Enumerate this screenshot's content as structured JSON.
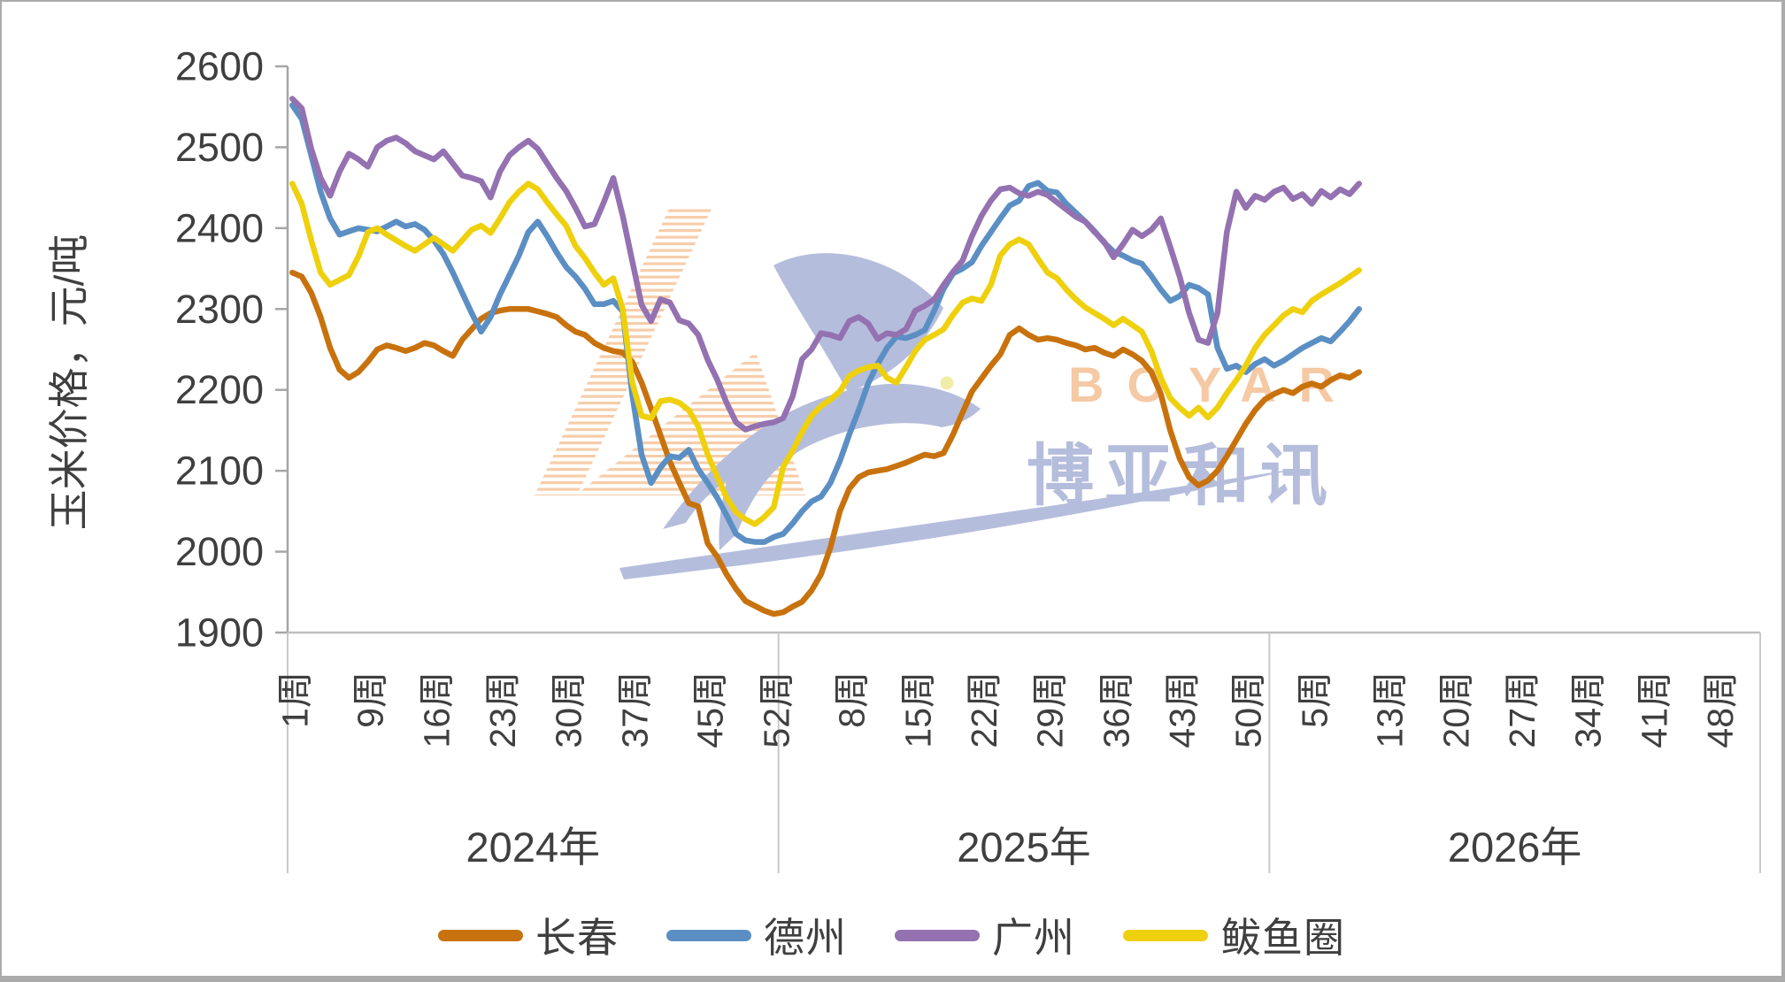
{
  "window": {
    "background": "#FFFFFF",
    "frame_color": "#ABABAB"
  },
  "watermark": {
    "brand_latin": "BOYAR",
    "brand_cn": "博亚和讯",
    "bird_color": "#B5BDDC",
    "bird_eye_color": "#F1EDA6",
    "latin_color": "#F4C9A4",
    "stripe_color": "#F6CDA9"
  },
  "chart_data": {
    "type": "line",
    "title": "",
    "ylabel": "玉米价格，元/吨",
    "xlabel": "",
    "grid": false,
    "legend_position": "bottom",
    "y_axis": {
      "min": 1900,
      "max": 2600,
      "step": 100,
      "ticks": [
        "1900",
        "2000",
        "2100",
        "2200",
        "2300",
        "2400",
        "2500",
        "2600"
      ]
    },
    "x_axis": {
      "unit": "周",
      "points_per_year": [
        52,
        52,
        10
      ],
      "years": [
        {
          "label": "2024年",
          "week_labels": [
            {
              "week": 1,
              "label": "1周"
            },
            {
              "week": 9,
              "label": "9周"
            },
            {
              "week": 16,
              "label": "16周"
            },
            {
              "week": 23,
              "label": "23周"
            },
            {
              "week": 30,
              "label": "30周"
            },
            {
              "week": 37,
              "label": "37周"
            },
            {
              "week": 45,
              "label": "45周"
            },
            {
              "week": 52,
              "label": "52周"
            }
          ]
        },
        {
          "label": "2025年",
          "week_labels": [
            {
              "week": 8,
              "label": "8周"
            },
            {
              "week": 15,
              "label": "15周"
            },
            {
              "week": 22,
              "label": "22周"
            },
            {
              "week": 29,
              "label": "29周"
            },
            {
              "week": 36,
              "label": "36周"
            },
            {
              "week": 43,
              "label": "43周"
            },
            {
              "week": 50,
              "label": "50周"
            }
          ]
        },
        {
          "label": "2026年",
          "week_labels": [
            {
              "week": 5,
              "label": "5周"
            },
            {
              "week": 13,
              "label": "13周"
            },
            {
              "week": 20,
              "label": "20周"
            },
            {
              "week": 27,
              "label": "27周"
            },
            {
              "week": 34,
              "label": "34周"
            },
            {
              "week": 41,
              "label": "41周"
            },
            {
              "week": 48,
              "label": "48周"
            }
          ]
        }
      ]
    },
    "series": [
      {
        "name": "长春",
        "id": "changchun",
        "color": "#C8720E",
        "values": [
          2345,
          2340,
          2320,
          2290,
          2252,
          2225,
          2215,
          2222,
          2235,
          2250,
          2255,
          2252,
          2248,
          2252,
          2258,
          2255,
          2248,
          2242,
          2262,
          2275,
          2288,
          2295,
          2298,
          2300,
          2300,
          2300,
          2297,
          2294,
          2290,
          2280,
          2272,
          2268,
          2258,
          2252,
          2248,
          2246,
          2235,
          2209,
          2177,
          2144,
          2111,
          2085,
          2060,
          2056,
          2010,
          1994,
          1972,
          1954,
          1939,
          1933,
          1927,
          1923,
          1925,
          1932,
          1938,
          1952,
          1972,
          2005,
          2050,
          2078,
          2092,
          2098,
          2100,
          2102,
          2106,
          2110,
          2115,
          2120,
          2118,
          2122,
          2145,
          2172,
          2198,
          2214,
          2230,
          2244,
          2268,
          2276,
          2268,
          2262,
          2264,
          2262,
          2258,
          2255,
          2250,
          2252,
          2246,
          2242,
          2250,
          2244,
          2236,
          2222,
          2195,
          2150,
          2115,
          2092,
          2082,
          2088,
          2100,
          2118,
          2138,
          2158,
          2175,
          2188,
          2195,
          2200,
          2196,
          2204,
          2208,
          2204,
          2212,
          2218,
          2215,
          2222
        ]
      },
      {
        "name": "德州",
        "id": "dezhou",
        "color": "#5B8FC4",
        "values": [
          2552,
          2535,
          2490,
          2445,
          2412,
          2392,
          2396,
          2400,
          2398,
          2396,
          2402,
          2408,
          2402,
          2405,
          2398,
          2385,
          2368,
          2345,
          2320,
          2295,
          2272,
          2290,
          2318,
          2342,
          2366,
          2395,
          2408,
          2390,
          2370,
          2352,
          2340,
          2325,
          2306,
          2306,
          2310,
          2297,
          2195,
          2120,
          2085,
          2104,
          2118,
          2116,
          2126,
          2102,
          2085,
          2067,
          2045,
          2022,
          2014,
          2012,
          2012,
          2018,
          2022,
          2035,
          2050,
          2062,
          2068,
          2085,
          2112,
          2145,
          2175,
          2208,
          2232,
          2252,
          2266,
          2264,
          2268,
          2274,
          2298,
          2325,
          2344,
          2350,
          2358,
          2378,
          2395,
          2412,
          2428,
          2434,
          2452,
          2456,
          2446,
          2444,
          2430,
          2419,
          2408,
          2396,
          2382,
          2371,
          2366,
          2360,
          2356,
          2341,
          2324,
          2310,
          2316,
          2330,
          2326,
          2318,
          2252,
          2226,
          2230,
          2222,
          2232,
          2238,
          2230,
          2236,
          2244,
          2252,
          2258,
          2264,
          2260,
          2272,
          2285,
          2300
        ]
      },
      {
        "name": "广州",
        "id": "guangzhou",
        "color": "#9471B0",
        "values": [
          2560,
          2548,
          2498,
          2462,
          2440,
          2470,
          2492,
          2485,
          2476,
          2500,
          2508,
          2512,
          2505,
          2495,
          2490,
          2485,
          2495,
          2480,
          2465,
          2462,
          2458,
          2438,
          2470,
          2490,
          2500,
          2508,
          2498,
          2480,
          2462,
          2446,
          2425,
          2402,
          2405,
          2432,
          2462,
          2415,
          2360,
          2305,
          2285,
          2312,
          2308,
          2286,
          2282,
          2268,
          2237,
          2213,
          2184,
          2160,
          2151,
          2155,
          2158,
          2160,
          2165,
          2192,
          2238,
          2250,
          2270,
          2268,
          2264,
          2285,
          2290,
          2282,
          2263,
          2270,
          2268,
          2275,
          2298,
          2304,
          2312,
          2330,
          2346,
          2360,
          2390,
          2415,
          2434,
          2448,
          2450,
          2443,
          2440,
          2445,
          2441,
          2432,
          2423,
          2414,
          2408,
          2395,
          2383,
          2364,
          2380,
          2398,
          2390,
          2398,
          2412,
          2377,
          2340,
          2295,
          2262,
          2258,
          2295,
          2395,
          2445,
          2425,
          2440,
          2435,
          2445,
          2450,
          2436,
          2442,
          2430,
          2446,
          2438,
          2448,
          2442,
          2455
        ]
      },
      {
        "name": "鲅鱼圈",
        "id": "bayuquan",
        "color": "#EED00D",
        "values": [
          2455,
          2430,
          2385,
          2345,
          2330,
          2336,
          2342,
          2365,
          2395,
          2400,
          2392,
          2385,
          2378,
          2372,
          2380,
          2388,
          2380,
          2372,
          2385,
          2398,
          2403,
          2394,
          2412,
          2432,
          2445,
          2455,
          2448,
          2432,
          2417,
          2403,
          2378,
          2363,
          2345,
          2330,
          2338,
          2300,
          2210,
          2168,
          2165,
          2186,
          2188,
          2184,
          2175,
          2155,
          2120,
          2093,
          2067,
          2049,
          2040,
          2034,
          2043,
          2055,
          2105,
          2125,
          2148,
          2168,
          2180,
          2188,
          2198,
          2217,
          2224,
          2228,
          2230,
          2215,
          2209,
          2228,
          2248,
          2262,
          2268,
          2275,
          2293,
          2308,
          2313,
          2310,
          2330,
          2366,
          2380,
          2386,
          2380,
          2362,
          2345,
          2338,
          2324,
          2312,
          2302,
          2295,
          2288,
          2280,
          2288,
          2280,
          2272,
          2248,
          2215,
          2190,
          2178,
          2168,
          2178,
          2166,
          2178,
          2196,
          2212,
          2230,
          2252,
          2268,
          2280,
          2292,
          2300,
          2296,
          2310,
          2318,
          2325,
          2332,
          2340,
          2348
        ]
      }
    ],
    "legend": [
      "长春",
      "德州",
      "广州",
      "鲅鱼圈"
    ],
    "style": {
      "axis_color": "#A6A6A6",
      "baseline_color": "#BFBFBF",
      "frame_line_color": "#C9C9C9",
      "text_color": "#3F3F3F",
      "line_width": 6.5
    }
  }
}
